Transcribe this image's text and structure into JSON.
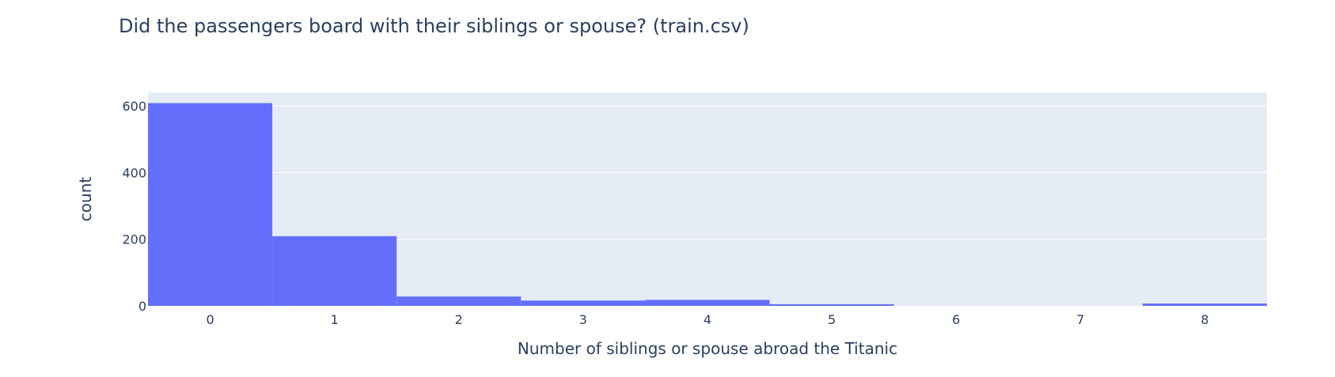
{
  "chart_data": {
    "type": "bar",
    "title": "Did the passengers board with their siblings or spouse? (train.csv)",
    "xlabel": "Number of siblings or spouse abroad the Titanic",
    "ylabel": "count",
    "categories": [
      "0",
      "1",
      "2",
      "3",
      "4",
      "5",
      "6",
      "7",
      "8"
    ],
    "values": [
      608,
      209,
      28,
      16,
      18,
      5,
      0,
      0,
      7
    ],
    "ylim": [
      0,
      640
    ],
    "yticks": [
      0,
      200,
      400,
      600
    ],
    "grid": true,
    "legend": "none",
    "colors": {
      "bar": "#636efa",
      "plot_background": "#e5ecf6",
      "grid": "#ffffff",
      "text": "#2a3f5f"
    }
  }
}
